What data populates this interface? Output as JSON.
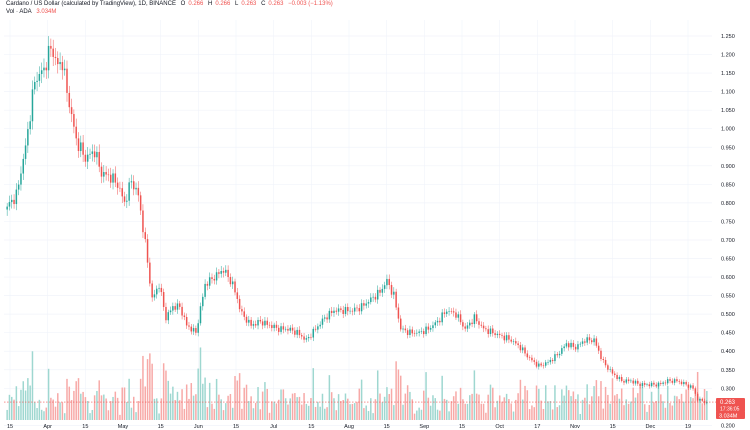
{
  "header": {
    "title": "Cardano / US Dollar (calculated by TradingView), 1D, BINANCE",
    "ohlc": [
      {
        "label": "O",
        "value": "0.266"
      },
      {
        "label": "H",
        "value": "0.266"
      },
      {
        "label": "L",
        "value": "0.263"
      },
      {
        "label": "C",
        "value": "0.263"
      }
    ],
    "change": "−0.003 (−1.13%)",
    "vol_label": "Vol · ADA",
    "vol_value": "3.034M"
  },
  "price_badge": {
    "price": "0.263",
    "countdown": "17:36:05"
  },
  "vol_badge": "3.034M",
  "colors": {
    "up": "#26a69a",
    "down": "#ef5350",
    "up_vol": "#9ed7d0",
    "down_vol": "#f7a9a7",
    "grid": "#f0f3fa",
    "axis_text": "#131722"
  },
  "chart_data": {
    "type": "candlestick",
    "ylim": [
      0.16,
      1.3
    ],
    "y_ticks": [
      "1.250",
      "1.200",
      "1.150",
      "1.100",
      "1.050",
      "1.000",
      "0.950",
      "0.900",
      "0.850",
      "0.800",
      "0.750",
      "0.700",
      "0.650",
      "0.600",
      "0.550",
      "0.500",
      "0.450",
      "0.400",
      "0.350",
      "0.300",
      "0.200"
    ],
    "x_ticks": [
      "15",
      "Apr",
      "15",
      "May",
      "15",
      "Jun",
      "15",
      "Jul",
      "15",
      "Aug",
      "15",
      "Sep",
      "15",
      "Oct",
      "17",
      "Nov",
      "15",
      "Dec",
      "19"
    ],
    "close_anchors": [
      [
        0,
        0.79
      ],
      [
        4,
        0.82
      ],
      [
        8,
        0.95
      ],
      [
        12,
        1.13
      ],
      [
        16,
        1.16
      ],
      [
        19,
        1.22
      ],
      [
        22,
        1.17
      ],
      [
        24,
        1.18
      ],
      [
        26,
        1.1
      ],
      [
        30,
        0.97
      ],
      [
        34,
        0.92
      ],
      [
        38,
        0.94
      ],
      [
        41,
        0.88
      ],
      [
        45,
        0.87
      ],
      [
        48,
        0.85
      ],
      [
        51,
        0.8
      ],
      [
        54,
        0.86
      ],
      [
        57,
        0.82
      ],
      [
        60,
        0.69
      ],
      [
        63,
        0.54
      ],
      [
        66,
        0.58
      ],
      [
        69,
        0.49
      ],
      [
        72,
        0.52
      ],
      [
        75,
        0.52
      ],
      [
        78,
        0.47
      ],
      [
        82,
        0.45
      ],
      [
        86,
        0.58
      ],
      [
        90,
        0.6
      ],
      [
        94,
        0.62
      ],
      [
        98,
        0.58
      ],
      [
        102,
        0.5
      ],
      [
        106,
        0.47
      ],
      [
        110,
        0.48
      ],
      [
        114,
        0.47
      ],
      [
        118,
        0.46
      ],
      [
        122,
        0.46
      ],
      [
        126,
        0.45
      ],
      [
        130,
        0.43
      ],
      [
        134,
        0.46
      ],
      [
        138,
        0.49
      ],
      [
        142,
        0.51
      ],
      [
        146,
        0.51
      ],
      [
        150,
        0.51
      ],
      [
        154,
        0.52
      ],
      [
        158,
        0.54
      ],
      [
        162,
        0.56
      ],
      [
        165,
        0.59
      ],
      [
        168,
        0.55
      ],
      [
        171,
        0.46
      ],
      [
        175,
        0.45
      ],
      [
        179,
        0.45
      ],
      [
        183,
        0.46
      ],
      [
        187,
        0.48
      ],
      [
        191,
        0.51
      ],
      [
        195,
        0.5
      ],
      [
        199,
        0.46
      ],
      [
        203,
        0.49
      ],
      [
        207,
        0.46
      ],
      [
        211,
        0.45
      ],
      [
        215,
        0.44
      ],
      [
        219,
        0.43
      ],
      [
        223,
        0.41
      ],
      [
        227,
        0.38
      ],
      [
        231,
        0.36
      ],
      [
        235,
        0.37
      ],
      [
        239,
        0.39
      ],
      [
        243,
        0.42
      ],
      [
        247,
        0.41
      ],
      [
        251,
        0.43
      ],
      [
        255,
        0.43
      ],
      [
        259,
        0.37
      ],
      [
        263,
        0.34
      ],
      [
        267,
        0.32
      ],
      [
        271,
        0.32
      ],
      [
        275,
        0.31
      ],
      [
        279,
        0.31
      ],
      [
        283,
        0.31
      ],
      [
        287,
        0.32
      ],
      [
        291,
        0.32
      ],
      [
        295,
        0.31
      ],
      [
        298,
        0.3
      ],
      [
        300,
        0.27
      ],
      [
        302,
        0.266
      ],
      [
        304,
        0.263
      ]
    ],
    "total_candles": 305
  }
}
